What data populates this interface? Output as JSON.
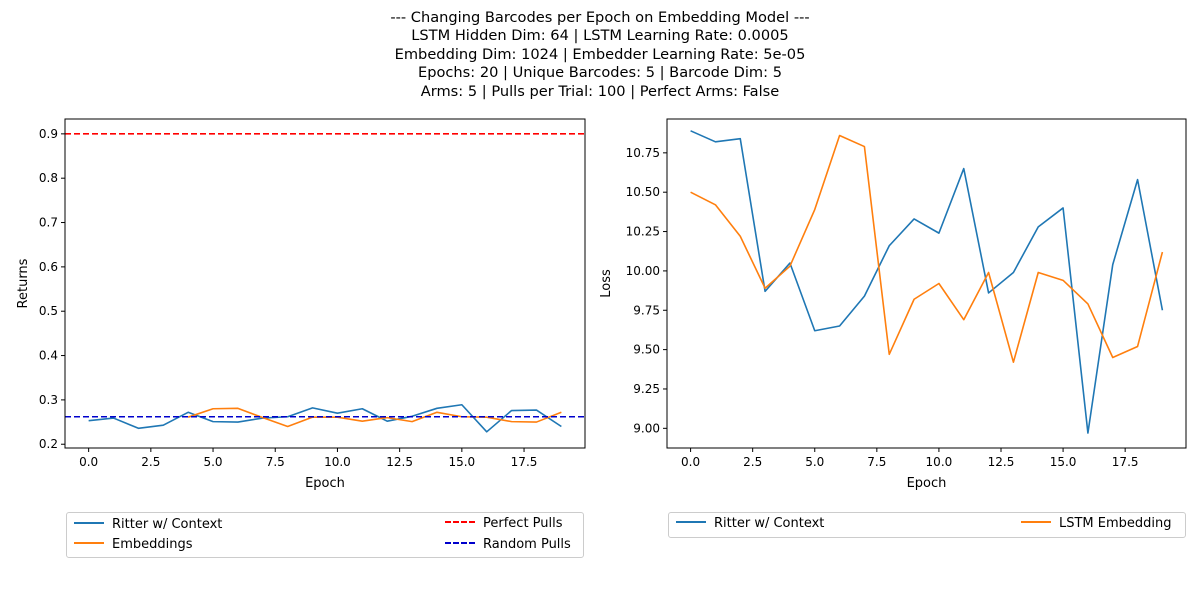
{
  "title_lines": [
    "--- Changing Barcodes per Epoch on Embedding Model ---",
    "LSTM Hidden Dim: 64 | LSTM Learning Rate: 0.0005",
    "Embedding Dim: 1024 | Embedder Learning Rate: 5e-05",
    "Epochs: 20 | Unique Barcodes: 5 | Barcode Dim: 5",
    "Arms: 5 | Pulls per Trial: 100 | Perfect Arms: False"
  ],
  "chart_data": [
    {
      "type": "line",
      "xlabel": "Epoch",
      "ylabel": "Returns",
      "xlim": [
        -0.95,
        19.95
      ],
      "ylim": [
        0.1915,
        0.9335
      ],
      "xticks": [
        0.0,
        2.5,
        5.0,
        7.5,
        10.0,
        12.5,
        15.0,
        17.5
      ],
      "xtick_labels": [
        "0.0",
        "2.5",
        "5.0",
        "7.5",
        "10.0",
        "12.5",
        "15.0",
        "17.5"
      ],
      "yticks": [
        0.2,
        0.3,
        0.4,
        0.5,
        0.6,
        0.7,
        0.8,
        0.9
      ],
      "ytick_labels": [
        "0.2",
        "0.3",
        "0.4",
        "0.5",
        "0.6",
        "0.7",
        "0.8",
        "0.9"
      ],
      "grid": false,
      "legend_placement": "below",
      "x": [
        0,
        1,
        2,
        3,
        4,
        5,
        6,
        7,
        8,
        9,
        10,
        11,
        12,
        13,
        14,
        15,
        16,
        17,
        18,
        19
      ],
      "series": [
        {
          "name": "Ritter w/ Context",
          "color": "#1f77b4",
          "dash": "solid",
          "values": [
            0.253,
            0.259,
            0.236,
            0.243,
            0.272,
            0.251,
            0.25,
            0.259,
            0.262,
            0.282,
            0.27,
            0.28,
            0.252,
            0.263,
            0.281,
            0.289,
            0.228,
            0.276,
            0.277,
            0.24
          ]
        },
        {
          "name": "Embeddings",
          "color": "#ff7f0e",
          "dash": "solid",
          "values": [
            null,
            null,
            null,
            null,
            0.261,
            0.28,
            0.281,
            0.26,
            0.24,
            0.261,
            0.261,
            0.252,
            0.26,
            0.251,
            0.272,
            0.262,
            0.261,
            0.251,
            0.25,
            0.272
          ]
        }
      ],
      "hlines": [
        {
          "name": "Perfect Pulls",
          "color": "#ff0000",
          "value": 0.9
        },
        {
          "name": "Random Pulls",
          "color": "#0000cc",
          "value": 0.262
        }
      ],
      "legend": {
        "left": [
          {
            "name": "Ritter w/ Context",
            "color": "#1f77b4",
            "dash": "solid"
          },
          {
            "name": "Embeddings",
            "color": "#ff7f0e",
            "dash": "solid"
          }
        ],
        "right": [
          {
            "name": "Perfect Pulls",
            "color": "#ff0000",
            "dash": "dashed"
          },
          {
            "name": "Random Pulls",
            "color": "#0000cc",
            "dash": "dashed"
          }
        ]
      }
    },
    {
      "type": "line",
      "xlabel": "Epoch",
      "ylabel": "Loss",
      "xlim": [
        -0.95,
        19.95
      ],
      "ylim": [
        8.875,
        10.965
      ],
      "xticks": [
        0.0,
        2.5,
        5.0,
        7.5,
        10.0,
        12.5,
        15.0,
        17.5
      ],
      "xtick_labels": [
        "0.0",
        "2.5",
        "5.0",
        "7.5",
        "10.0",
        "12.5",
        "15.0",
        "17.5"
      ],
      "yticks": [
        9.0,
        9.25,
        9.5,
        9.75,
        10.0,
        10.25,
        10.5,
        10.75
      ],
      "ytick_labels": [
        "9.00",
        "9.25",
        "9.50",
        "9.75",
        "10.00",
        "10.25",
        "10.50",
        "10.75"
      ],
      "grid": false,
      "legend_placement": "below",
      "x": [
        0,
        1,
        2,
        3,
        4,
        5,
        6,
        7,
        8,
        9,
        10,
        11,
        12,
        13,
        14,
        15,
        16,
        17,
        18,
        19
      ],
      "series": [
        {
          "name": "Ritter w/ Context",
          "color": "#1f77b4",
          "dash": "solid",
          "values": [
            10.89,
            10.82,
            10.84,
            9.87,
            10.05,
            9.62,
            9.65,
            9.84,
            10.16,
            10.33,
            10.24,
            10.65,
            9.86,
            9.99,
            10.28,
            10.4,
            8.97,
            10.04,
            10.58,
            9.75
          ]
        },
        {
          "name": "LSTM Embedding",
          "color": "#ff7f0e",
          "dash": "solid",
          "values": [
            10.5,
            10.42,
            10.22,
            9.89,
            10.03,
            10.39,
            10.86,
            10.79,
            9.47,
            9.82,
            9.92,
            9.69,
            9.99,
            9.42,
            9.99,
            9.94,
            9.79,
            9.45,
            9.52,
            10.12
          ]
        }
      ],
      "hlines": [],
      "legend": {
        "left": [
          {
            "name": "Ritter w/ Context",
            "color": "#1f77b4",
            "dash": "solid"
          }
        ],
        "right": [
          {
            "name": "LSTM Embedding",
            "color": "#ff7f0e",
            "dash": "solid"
          }
        ]
      }
    }
  ]
}
